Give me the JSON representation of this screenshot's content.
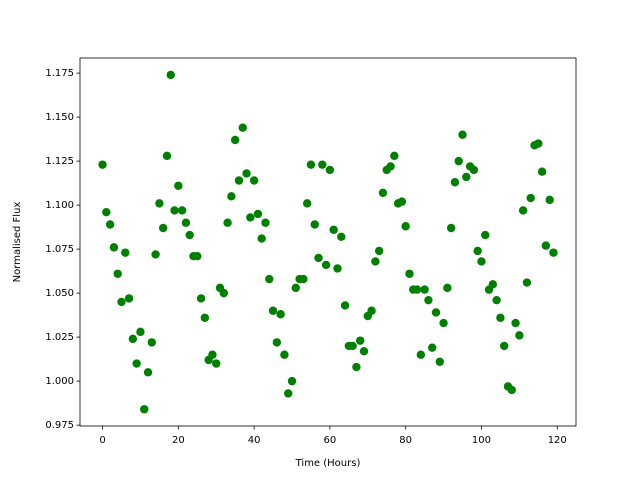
{
  "chart_data": {
    "type": "scatter",
    "x_label": "Time (Hours)",
    "y_label": "Normalised Flux",
    "color": "#008000",
    "x": [
      0,
      1,
      2,
      3,
      4,
      5,
      6,
      7,
      8,
      9,
      10,
      11,
      12,
      13,
      14,
      15,
      16,
      17,
      18,
      19,
      20,
      21,
      22,
      23,
      24,
      25,
      26,
      27,
      28,
      29,
      30,
      31,
      32,
      33,
      34,
      35,
      36,
      37,
      38,
      39,
      40,
      41,
      42,
      43,
      44,
      45,
      46,
      47,
      48,
      49,
      50,
      51,
      52,
      53,
      54,
      55,
      56,
      57,
      58,
      59,
      60,
      61,
      62,
      63,
      64,
      65,
      66,
      67,
      68,
      69,
      70,
      71,
      72,
      73,
      74,
      75,
      76,
      77,
      78,
      79,
      80,
      81,
      82,
      83,
      84,
      85,
      86,
      87,
      88,
      89,
      90,
      91,
      92,
      93,
      94,
      95,
      96,
      97,
      98,
      99,
      100,
      101,
      102,
      103,
      104,
      105,
      106,
      107,
      108,
      109,
      110,
      111,
      112,
      113,
      114,
      115,
      116,
      117,
      118,
      119
    ],
    "values": [
      1.123,
      1.096,
      1.089,
      1.076,
      1.061,
      1.045,
      1.073,
      1.047,
      1.024,
      1.01,
      1.028,
      0.984,
      1.005,
      1.022,
      1.072,
      1.101,
      1.087,
      1.128,
      1.174,
      1.097,
      1.111,
      1.097,
      1.09,
      1.083,
      1.071,
      1.071,
      1.047,
      1.036,
      1.012,
      1.015,
      1.01,
      1.053,
      1.05,
      1.09,
      1.105,
      1.137,
      1.114,
      1.144,
      1.118,
      1.093,
      1.114,
      1.095,
      1.081,
      1.09,
      1.058,
      1.04,
      1.022,
      1.038,
      1.015,
      0.993,
      1.0,
      1.053,
      1.058,
      1.058,
      1.101,
      1.123,
      1.089,
      1.07,
      1.123,
      1.066,
      1.12,
      1.086,
      1.064,
      1.082,
      1.043,
      1.02,
      1.02,
      1.008,
      1.023,
      1.017,
      1.037,
      1.04,
      1.068,
      1.074,
      1.107,
      1.12,
      1.122,
      1.128,
      1.101,
      1.102,
      1.088,
      1.061,
      1.052,
      1.052,
      1.015,
      1.052,
      1.046,
      1.019,
      1.039,
      1.011,
      1.033,
      1.053,
      1.087,
      1.113,
      1.125,
      1.14,
      1.116,
      1.122,
      1.12,
      1.074,
      1.068,
      1.083,
      1.052,
      1.055,
      1.046,
      1.036,
      1.02,
      0.997,
      0.995,
      1.033,
      1.026,
      1.097,
      1.056,
      1.104,
      1.134,
      1.135,
      1.119,
      1.077,
      1.103,
      1.073
    ],
    "xlim": [
      -5.95,
      124.95
    ],
    "ylim": [
      0.9745,
      1.1836
    ],
    "xticks": [
      0,
      20,
      40,
      60,
      80,
      100,
      120
    ],
    "yticks": [
      0.975,
      {
        "value": 1.0,
        "label": "1.000"
      },
      1.025,
      {
        "value": 1.05,
        "label": "1.050"
      },
      1.075,
      {
        "value": 1.1,
        "label": "1.100"
      },
      1.125,
      {
        "value": 1.15,
        "label": "1.150"
      },
      1.175
    ],
    "grid": false
  }
}
